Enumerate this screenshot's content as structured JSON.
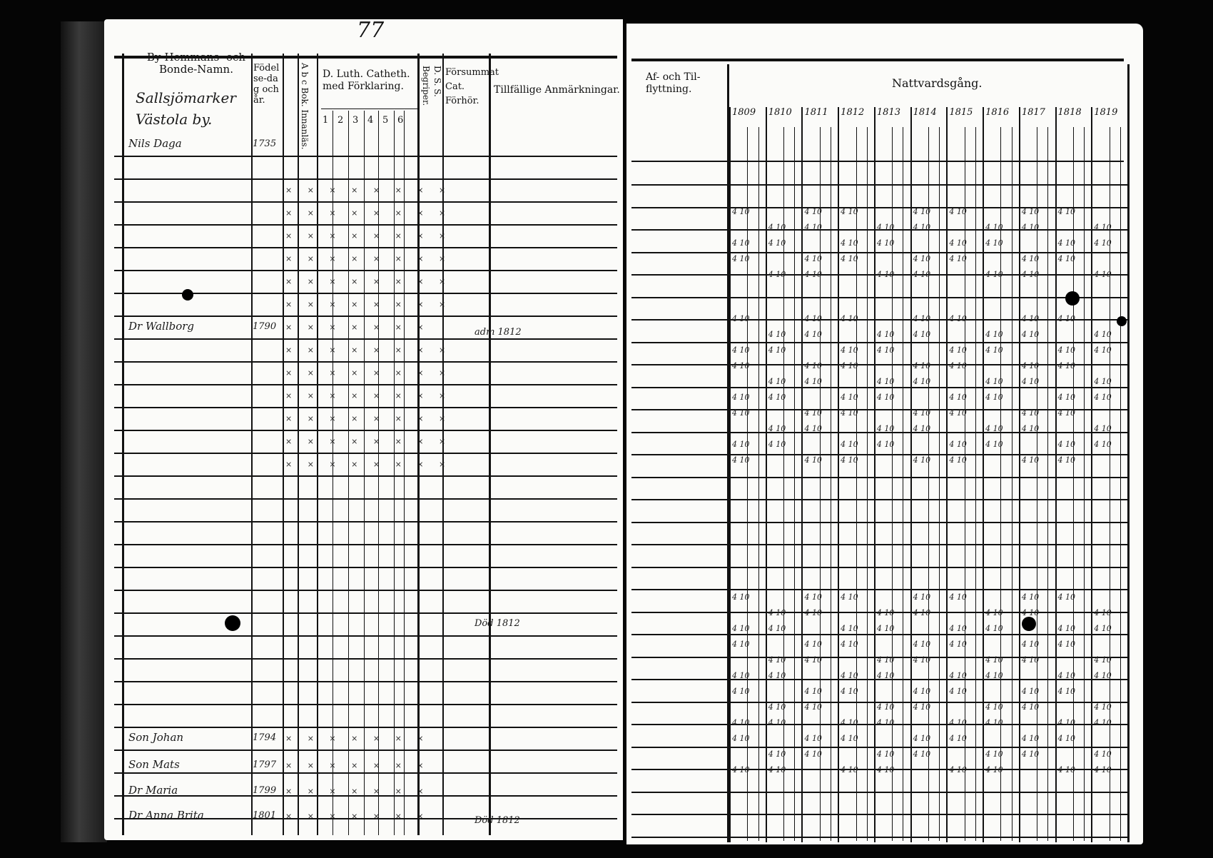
{
  "left_page": {
    "page_number": "77",
    "headers": {
      "name": "By-Hemmans- och Bonde-Namn.",
      "birth": "Födelse-dag och år.",
      "abc": "A b c Bok. Innanläs.",
      "catechism": "D. Luth. Catheth. med Förklaring.",
      "catechism_parts": [
        "1",
        "2",
        "3",
        "4",
        "5",
        "6"
      ],
      "begriper": "Begriper.",
      "dss": "D. S. S.",
      "forsummat": "Försummat Cat. Förhör.",
      "remarks": "Tillfällige Anmärkningar."
    },
    "handwritten_heading": "Sallsjömarker Västola by.",
    "entries": [
      {
        "name": "Nils Daga",
        "year": "1735"
      },
      {
        "name": "Dr Wallborg",
        "year": "1790"
      },
      {
        "name": "Son Johan",
        "year": "1794"
      },
      {
        "name": "Son Mats",
        "year": "1797"
      },
      {
        "name": "Dr Maria",
        "year": "1799"
      },
      {
        "name": "Dr Anna Brita",
        "year": "1801"
      }
    ],
    "remarks": [
      "adm 1812",
      "Död 1812",
      "Död 1812"
    ]
  },
  "right_page": {
    "headers": {
      "moves": "Af- och Til-flyttning.",
      "communion": "Nattvardsgång."
    },
    "years": [
      "1809",
      "1810",
      "1811",
      "1812",
      "1813",
      "1814",
      "1815",
      "1816",
      "1817",
      "1818",
      "1819"
    ]
  }
}
